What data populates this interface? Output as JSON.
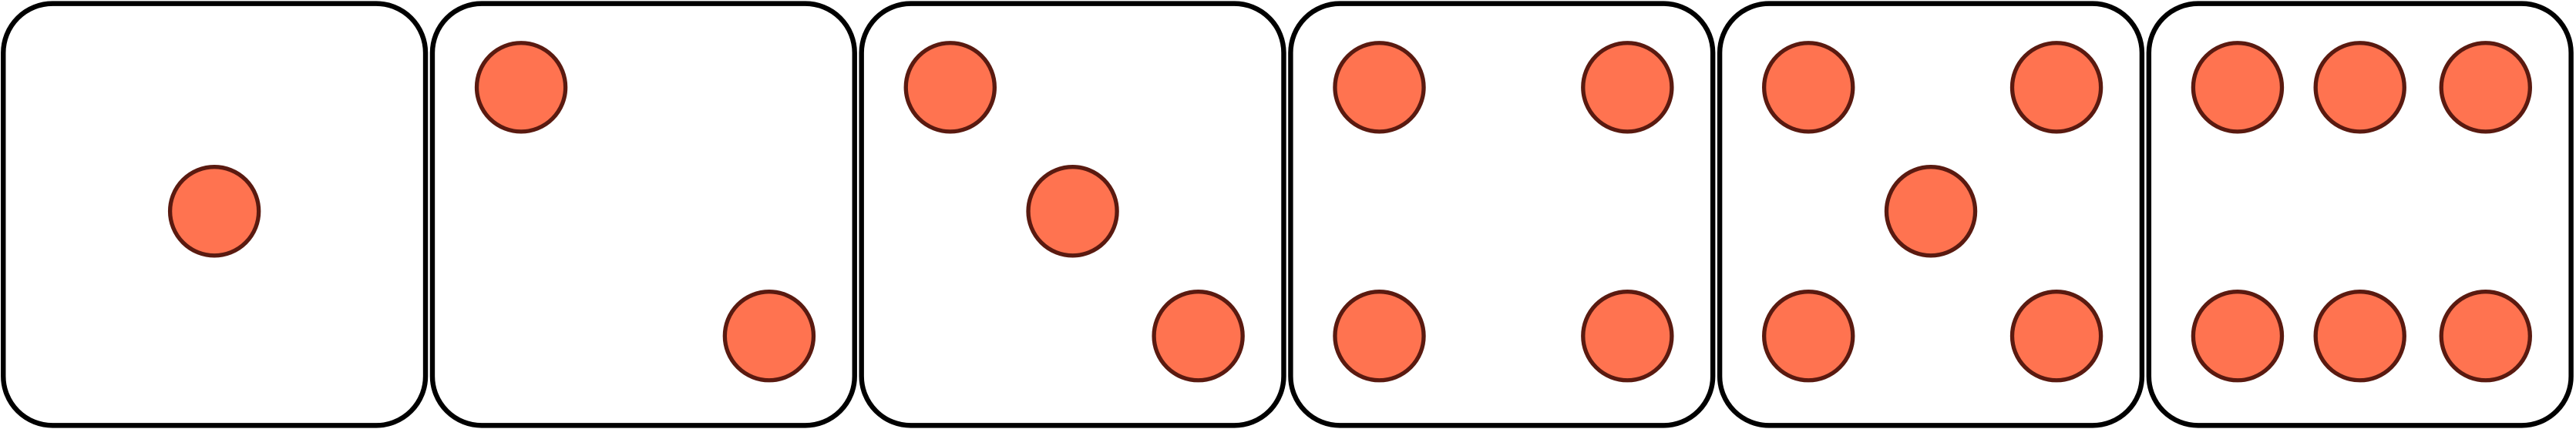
{
  "dice": [
    {
      "face_value": 1
    },
    {
      "face_value": 2
    },
    {
      "face_value": 3
    },
    {
      "face_value": 4
    },
    {
      "face_value": 5
    },
    {
      "face_value": 6
    }
  ],
  "colors": {
    "pip_fill": "#ff7350",
    "pip_stroke": "#5a1a10",
    "die_fill": "#ffffff",
    "die_stroke": "#000000"
  }
}
